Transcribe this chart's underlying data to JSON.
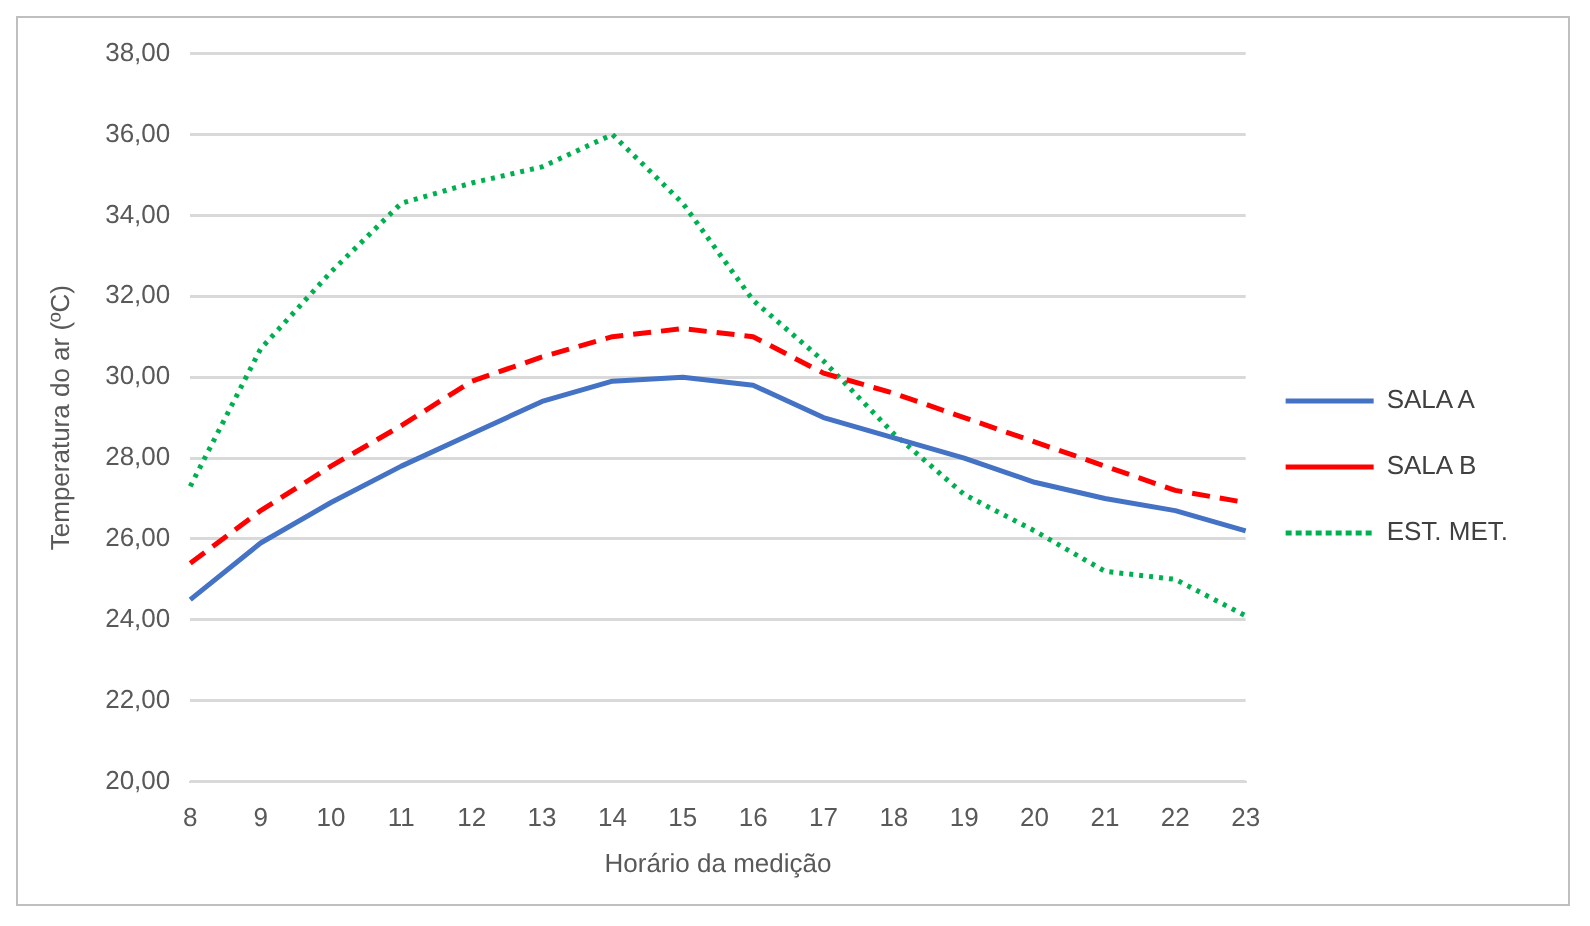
{
  "chart_data": {
    "type": "line",
    "xlabel": "Horário da medição",
    "ylabel": "Temperatura do ar (ºC)",
    "categories": [
      "8",
      "9",
      "10",
      "11",
      "12",
      "13",
      "14",
      "15",
      "16",
      "17",
      "18",
      "19",
      "20",
      "21",
      "22",
      "23"
    ],
    "series": [
      {
        "name": "SALA A",
        "color": "#4472c4",
        "line_style": "solid",
        "values": [
          24.5,
          25.9,
          26.9,
          27.8,
          28.6,
          29.4,
          29.9,
          30.0,
          29.8,
          29.0,
          28.5,
          28.0,
          27.4,
          27.0,
          26.7,
          26.2
        ]
      },
      {
        "name": "SALA B",
        "color": "#ff0000",
        "line_style": "dashed",
        "values": [
          25.4,
          26.7,
          27.8,
          28.8,
          29.9,
          30.5,
          31.0,
          31.2,
          31.0,
          30.1,
          29.6,
          29.0,
          28.4,
          27.8,
          27.2,
          26.9
        ]
      },
      {
        "name": "EST. MET.",
        "color": "#00b050",
        "line_style": "dotted",
        "values": [
          27.3,
          30.7,
          32.6,
          34.3,
          34.8,
          35.2,
          36.0,
          34.3,
          31.9,
          30.4,
          28.6,
          27.1,
          26.2,
          25.2,
          25.0,
          24.1
        ]
      }
    ],
    "ylim": [
      20,
      38
    ],
    "yticks": [
      {
        "value": 20,
        "label": "20,00"
      },
      {
        "value": 22,
        "label": "22,00"
      },
      {
        "value": 24,
        "label": "24,00"
      },
      {
        "value": 26,
        "label": "26,00"
      },
      {
        "value": 28,
        "label": "28,00"
      },
      {
        "value": 30,
        "label": "30,00"
      },
      {
        "value": 32,
        "label": "32,00"
      },
      {
        "value": 34,
        "label": "34,00"
      },
      {
        "value": 36,
        "label": "36,00"
      },
      {
        "value": 38,
        "label": "38,00"
      }
    ],
    "grid": "y",
    "legend": "right",
    "marker": "none"
  }
}
